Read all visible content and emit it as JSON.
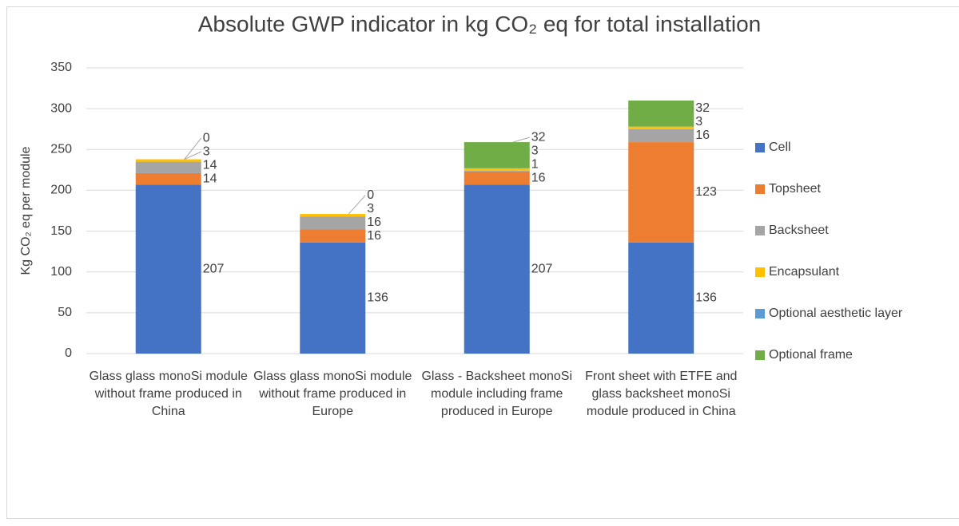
{
  "chart_data": {
    "type": "stacked_bar",
    "title": "Absolute GWP indicator in kg CO₂ eq for total installation",
    "y_label": "Kg CO₂ eq per module",
    "categories": [
      "Glass glass monoSi module without frame produced in China",
      "Glass glass monoSi module without frame produced in Europe",
      "Glass - Backsheet monoSi module including frame produced in Europe",
      "Front sheet with ETFE and glass backsheet monoSi module produced in China"
    ],
    "series": [
      {
        "name": "Cell",
        "color": "#4472c4",
        "values": [
          207,
          136,
          207,
          136
        ]
      },
      {
        "name": "Topsheet",
        "color": "#ed7d31",
        "values": [
          14,
          16,
          16,
          123
        ]
      },
      {
        "name": "Backsheet",
        "color": "#a5a5a5",
        "values": [
          14,
          16,
          1,
          16
        ]
      },
      {
        "name": "Encapsulant",
        "color": "#ffc000",
        "values": [
          3,
          3,
          3,
          3
        ]
      },
      {
        "name": "Optional aesthetic layer",
        "color": "#5b9bd5",
        "values": [
          0,
          0,
          null,
          null
        ]
      },
      {
        "name": "Optional frame",
        "color": "#70ad47",
        "values": [
          null,
          null,
          32,
          32
        ]
      }
    ],
    "ylim": [
      0,
      350
    ],
    "yticks": [
      0,
      50,
      100,
      150,
      200,
      250,
      300,
      350
    ],
    "grid": true,
    "legend": "right"
  }
}
